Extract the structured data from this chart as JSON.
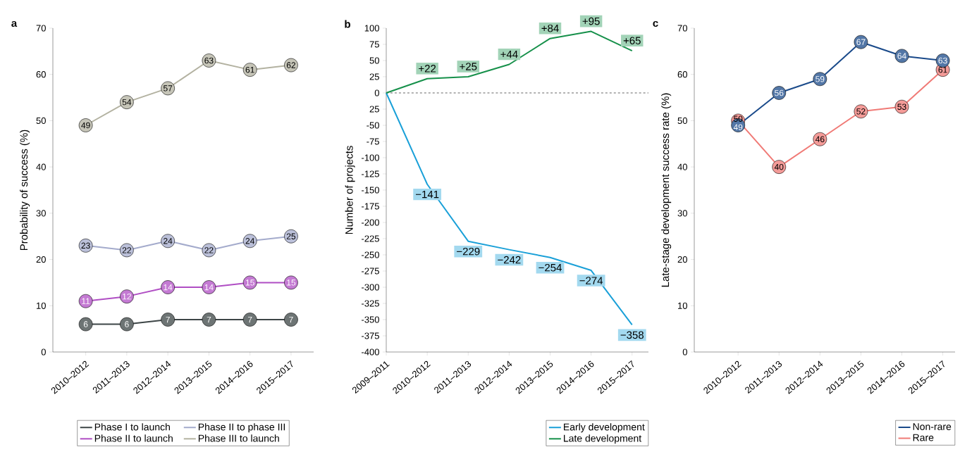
{
  "chart_data": [
    {
      "type": "line",
      "title": "a",
      "ylabel": "Probability of success (%)",
      "categories": [
        "2010–2012",
        "2011–2013",
        "2012–2014",
        "2013–2015",
        "2014–2016",
        "2015–2017"
      ],
      "series": [
        {
          "name": "Phase I to launch",
          "color": "#3d4546",
          "values": [
            6,
            6,
            7,
            7,
            7,
            7
          ]
        },
        {
          "name": "Phase II to phase III",
          "color": "#a4abcc",
          "values": [
            23,
            22,
            24,
            22,
            24,
            25
          ]
        },
        {
          "name": "Phase II to launch",
          "color": "#b04ec4",
          "values": [
            11,
            12,
            14,
            14,
            15,
            15
          ]
        },
        {
          "name": "Phase III to launch",
          "color": "#b3b2a1",
          "values": [
            49,
            54,
            57,
            63,
            61,
            62
          ]
        }
      ],
      "ylim": [
        0,
        70
      ],
      "yticks": [
        0,
        10,
        20,
        30,
        40,
        50,
        60,
        70
      ],
      "marker": "circle",
      "data_labels": true,
      "legend": "bottom"
    },
    {
      "type": "line",
      "title": "b",
      "ylabel": "Number of projects",
      "categories": [
        "2009–2011",
        "2010–2012",
        "2011–2013",
        "2012–2014",
        "2013–2015",
        "2014–2016",
        "2015–2017"
      ],
      "series": [
        {
          "name": "Early development",
          "color": "#1aa0d8",
          "values": [
            0,
            -141,
            -229,
            -242,
            -254,
            -274,
            -358
          ],
          "value_labels": [
            null,
            "−141",
            "−229",
            "−242",
            "−254",
            "−274",
            "−358"
          ]
        },
        {
          "name": "Late development",
          "color": "#16904a",
          "values": [
            0,
            22,
            25,
            44,
            84,
            95,
            65
          ],
          "value_labels": [
            null,
            "+22",
            "+25",
            "+44",
            "+84",
            "+95",
            "+65"
          ]
        }
      ],
      "ylim": [
        -400,
        100
      ],
      "yticks": [
        -400,
        -375,
        -350,
        -325,
        -300,
        -275,
        -250,
        -225,
        -200,
        -175,
        -150,
        -125,
        -100,
        -75,
        -50,
        {
          "value": -25,
          "label": "25"
        },
        0,
        25,
        50,
        75,
        100
      ],
      "ref_lines": [
        {
          "axis": "y",
          "value": 0,
          "color": "#666666",
          "line_style": "dashed"
        }
      ],
      "legend": "bottom right"
    },
    {
      "type": "line",
      "title": "c",
      "ylabel": "Late-stage development success rate (%)",
      "categories": [
        "2010–2012",
        "2011–2013",
        "2012–2014",
        "2013–2015",
        "2014–2016",
        "2015–2017"
      ],
      "series": [
        {
          "name": "Non-rare",
          "color": "#1a4a8a",
          "values": [
            49,
            56,
            59,
            67,
            64,
            63
          ]
        },
        {
          "name": "Rare",
          "color": "#f07a76",
          "values": [
            50,
            40,
            46,
            52,
            53,
            61
          ]
        }
      ],
      "ylim": [
        0,
        70
      ],
      "yticks": [
        0,
        10,
        20,
        30,
        40,
        50,
        60,
        70
      ],
      "marker": "circle",
      "data_labels": true,
      "legend": "bottom right"
    }
  ]
}
